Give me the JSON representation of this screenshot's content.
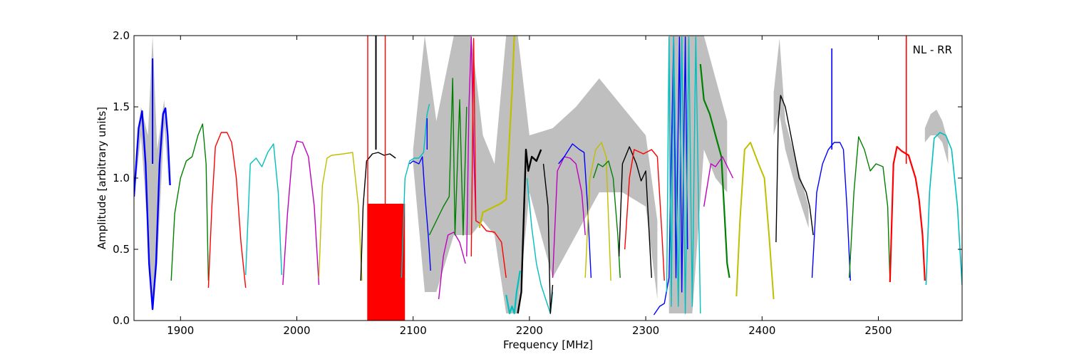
{
  "chart_data": {
    "type": "line",
    "title": "",
    "xlabel": "Frequency [MHz]",
    "ylabel": "Amplitude [arbitrary units]",
    "annotation": "NL - RR",
    "xlim": [
      1860,
      2572
    ],
    "ylim": [
      0.0,
      2.0
    ],
    "xticks": [
      1900,
      2000,
      2100,
      2200,
      2300,
      2400,
      2500
    ],
    "xtick_labels": [
      "1900",
      "2000",
      "2100",
      "2200",
      "2300",
      "2400",
      "2500"
    ],
    "yticks": [
      0.0,
      0.5,
      1.0,
      1.5,
      2.0
    ],
    "ytick_labels": [
      "0.0",
      "0.5",
      "1.0",
      "1.5",
      "2.0"
    ],
    "grid": false,
    "legend": "none",
    "envelope_color": "#bfbfbf",
    "envelope": [
      {
        "x": [
          1860,
          1866,
          1872,
          1876,
          1880,
          1886,
          1890
        ],
        "lo": [
          0.85,
          1.3,
          0.6,
          0.06,
          0.4,
          1.38,
          0.95
        ],
        "hi": [
          0.95,
          1.5,
          1.3,
          2.0,
          1.2,
          1.55,
          1.0
        ]
      },
      {
        "x": [
          2100,
          2110,
          2120,
          2135,
          2150,
          2160,
          2170,
          2180,
          2190,
          2200,
          2220,
          2240,
          2260,
          2280,
          2300,
          2310
        ],
        "lo": [
          1.1,
          0.2,
          0.2,
          0.6,
          0.6,
          0.7,
          0.6,
          0.05,
          0.05,
          0.9,
          0.3,
          0.6,
          0.9,
          0.9,
          0.8,
          0.15
        ],
        "hi": [
          1.2,
          2.0,
          1.4,
          2.0,
          2.0,
          1.3,
          1.1,
          2.0,
          2.0,
          1.3,
          1.35,
          1.5,
          1.7,
          1.5,
          1.3,
          0.7
        ]
      },
      {
        "x": [
          2320,
          2330,
          2340,
          2350,
          2360,
          2370
        ],
        "lo": [
          0.05,
          0.05,
          0.05,
          1.2,
          1.0,
          0.9
        ],
        "hi": [
          2.0,
          2.0,
          2.0,
          2.0,
          1.7,
          1.4
        ]
      },
      {
        "x": [
          2410,
          2415,
          2420,
          2430,
          2440
        ],
        "lo": [
          1.3,
          1.45,
          1.2,
          0.9,
          0.65
        ],
        "hi": [
          1.6,
          1.98,
          1.4,
          1.1,
          0.8
        ]
      },
      {
        "x": [
          2540,
          2545,
          2550,
          2555,
          2560
        ],
        "lo": [
          1.25,
          1.3,
          1.3,
          1.25,
          1.1
        ],
        "hi": [
          1.35,
          1.45,
          1.48,
          1.4,
          1.25
        ]
      }
    ],
    "series": [
      {
        "color": "#0000ff",
        "width": 2.4,
        "x": [
          1860,
          1864,
          1867,
          1870,
          1873,
          1876,
          1879,
          1882,
          1885,
          1887,
          1889,
          1891
        ],
        "y": [
          0.87,
          1.35,
          1.47,
          1.1,
          0.4,
          0.08,
          0.4,
          1.1,
          1.45,
          1.49,
          1.3,
          0.95
        ]
      },
      {
        "color": "#0000ff",
        "width": 2,
        "x": [
          1876,
          1876
        ],
        "y": [
          1.1,
          1.84
        ]
      },
      {
        "color": "#008000",
        "width": 1.4,
        "x": [
          1892,
          1895,
          1900,
          1905,
          1910,
          1915,
          1919,
          1922,
          1924
        ],
        "y": [
          0.28,
          0.75,
          1.0,
          1.12,
          1.15,
          1.3,
          1.38,
          1.1,
          0.28
        ]
      },
      {
        "color": "#ff0000",
        "width": 1.4,
        "x": [
          1924,
          1927,
          1930,
          1935,
          1940,
          1944,
          1948,
          1952,
          1956
        ],
        "y": [
          0.23,
          0.8,
          1.22,
          1.32,
          1.32,
          1.25,
          1.0,
          0.55,
          0.23
        ]
      },
      {
        "color": "#00bfbf",
        "width": 1.4,
        "x": [
          1956,
          1960,
          1965,
          1970,
          1975,
          1980,
          1984,
          1987
        ],
        "y": [
          0.32,
          1.1,
          1.14,
          1.08,
          1.18,
          1.24,
          0.9,
          0.32
        ]
      },
      {
        "color": "#bf00bf",
        "width": 1.4,
        "x": [
          1988,
          1992,
          1996,
          2000,
          2005,
          2010,
          2015,
          2019
        ],
        "y": [
          0.25,
          0.75,
          1.15,
          1.26,
          1.25,
          1.15,
          0.8,
          0.25
        ]
      },
      {
        "color": "#bfbf00",
        "width": 1.4,
        "x": [
          2019,
          2022,
          2026,
          2030,
          2040,
          2048,
          2053,
          2056
        ],
        "y": [
          0.3,
          0.95,
          1.14,
          1.16,
          1.17,
          1.18,
          0.8,
          0.28
        ]
      },
      {
        "color": "#000000",
        "width": 1.4,
        "x": [
          2055,
          2057,
          2060,
          2065,
          2070,
          2075,
          2080,
          2085
        ],
        "y": [
          0.28,
          0.8,
          1.12,
          1.17,
          1.18,
          1.16,
          1.17,
          1.14
        ]
      },
      {
        "color": "#ff0000",
        "width": 1.4,
        "x": [
          2061,
          2061
        ],
        "y": [
          0.0,
          2.0
        ]
      },
      {
        "color": "#ff0000",
        "width": 1.4,
        "x": [
          2076,
          2076
        ],
        "y": [
          0.0,
          2.0
        ]
      },
      {
        "color": "#000000",
        "width": 2,
        "x": [
          2068,
          2068
        ],
        "y": [
          1.2,
          2.0
        ]
      },
      {
        "color": "#00bfbf",
        "width": 1.4,
        "x": [
          2090,
          2093,
          2097,
          2101,
          2105,
          2109,
          2112,
          2114
        ],
        "y": [
          0.3,
          1.0,
          1.12,
          1.14,
          1.14,
          1.18,
          1.45,
          1.52
        ]
      },
      {
        "color": "#0000ff",
        "width": 1.4,
        "x": [
          2097,
          2100,
          2105,
          2108,
          2110,
          2113,
          2115
        ],
        "y": [
          1.1,
          1.12,
          1.1,
          1.15,
          0.9,
          0.6,
          0.35
        ]
      },
      {
        "color": "#0000ff",
        "width": 1.4,
        "x": [
          2112,
          2112
        ],
        "y": [
          1.2,
          1.42
        ]
      },
      {
        "color": "#bf00bf",
        "width": 1.4,
        "x": [
          2122,
          2126,
          2130,
          2135,
          2140,
          2145
        ],
        "y": [
          0.15,
          0.45,
          0.6,
          0.62,
          0.55,
          0.4
        ]
      },
      {
        "color": "#008000",
        "width": 1.4,
        "x": [
          2114,
          2120,
          2126,
          2131,
          2134,
          2136,
          2140,
          2143,
          2146
        ],
        "y": [
          0.6,
          0.7,
          0.8,
          0.87,
          1.7,
          0.6,
          1.55,
          0.6,
          1.5
        ]
      },
      {
        "color": "#bf00bf",
        "width": 1.4,
        "x": [
          2146,
          2148,
          2150,
          2152,
          2154
        ],
        "y": [
          0.45,
          1.5,
          1.99,
          1.2,
          0.7
        ]
      },
      {
        "color": "#ff0000",
        "width": 1.4,
        "x": [
          2150,
          2152,
          2154,
          2158,
          2163,
          2170,
          2176,
          2180
        ],
        "y": [
          0.45,
          1.98,
          0.7,
          0.68,
          0.63,
          0.62,
          0.55,
          0.3
        ]
      },
      {
        "color": "#bfbf00",
        "width": 2.2,
        "x": [
          2157,
          2160,
          2165,
          2170,
          2175,
          2180,
          2185,
          2187
        ],
        "y": [
          0.65,
          0.76,
          0.78,
          0.8,
          0.82,
          0.85,
          1.6,
          2.0
        ]
      },
      {
        "color": "#00bfbf",
        "width": 2.2,
        "x": [
          2180,
          2183,
          2185,
          2187,
          2189,
          2192
        ],
        "y": [
          0.18,
          0.05,
          0.1,
          0.05,
          0.2,
          0.35
        ]
      },
      {
        "color": "#000000",
        "width": 2.4,
        "x": [
          2190,
          2193,
          2197,
          2199,
          2202,
          2206,
          2210
        ],
        "y": [
          0.05,
          0.2,
          1.2,
          1.05,
          1.15,
          1.12,
          1.2
        ]
      },
      {
        "color": "#00bfbf",
        "width": 1.4,
        "x": [
          2198,
          2202,
          2206,
          2210,
          2214,
          2218,
          2220
        ],
        "y": [
          1.0,
          0.65,
          0.4,
          0.25,
          0.15,
          0.05,
          0.2
        ]
      },
      {
        "color": "#000000",
        "width": 1.4,
        "x": [
          2212,
          2216,
          2218,
          2220
        ],
        "y": [
          1.1,
          0.8,
          0.05,
          0.25
        ]
      },
      {
        "color": "#bf00bf",
        "width": 1.4,
        "x": [
          2220,
          2224,
          2230,
          2235,
          2240,
          2245,
          2248
        ],
        "y": [
          0.3,
          1.05,
          1.15,
          1.14,
          1.1,
          0.9,
          0.6
        ]
      },
      {
        "color": "#0000ff",
        "width": 1.4,
        "x": [
          2225,
          2230,
          2237,
          2243,
          2247,
          2250,
          2253
        ],
        "y": [
          1.1,
          1.15,
          1.24,
          1.2,
          1.18,
          0.8,
          0.3
        ]
      },
      {
        "color": "#bfbf00",
        "width": 1.4,
        "x": [
          2248,
          2252,
          2257,
          2262,
          2266,
          2270
        ],
        "y": [
          0.3,
          1.0,
          1.2,
          1.25,
          1.15,
          0.28
        ]
      },
      {
        "color": "#008000",
        "width": 1.4,
        "x": [
          2255,
          2259,
          2263,
          2268,
          2272,
          2276,
          2278
        ],
        "y": [
          1.0,
          1.1,
          1.08,
          1.12,
          1.0,
          0.6,
          0.3
        ]
      },
      {
        "color": "#000000",
        "width": 1.4,
        "x": [
          2277,
          2280,
          2286,
          2292,
          2296,
          2300,
          2305
        ],
        "y": [
          0.45,
          1.1,
          1.22,
          1.1,
          0.98,
          1.05,
          0.3
        ]
      },
      {
        "color": "#ff0000",
        "width": 1.4,
        "x": [
          2282,
          2286,
          2290,
          2298,
          2305,
          2310,
          2314,
          2316
        ],
        "y": [
          0.5,
          1.0,
          1.2,
          1.17,
          1.2,
          1.15,
          0.6,
          0.28
        ]
      },
      {
        "color": "#0000ff",
        "width": 1.4,
        "x": [
          2307,
          2312,
          2316,
          2320,
          2324,
          2326,
          2329,
          2331,
          2334,
          2336
        ],
        "y": [
          0.04,
          0.1,
          0.12,
          0.3,
          1.99,
          0.3,
          1.99,
          0.2,
          1.99,
          0.5
        ]
      },
      {
        "color": "#00bfbf",
        "width": 1.4,
        "x": [
          2318,
          2320,
          2322,
          2324,
          2328,
          2331,
          2334,
          2337,
          2340,
          2343,
          2347
        ],
        "y": [
          0.2,
          1.99,
          0.1,
          1.99,
          0.1,
          1.99,
          0.05,
          1.99,
          0.1,
          1.99,
          0.05
        ]
      },
      {
        "color": "#008000",
        "width": 2.2,
        "x": [
          2347,
          2350,
          2355,
          2360,
          2365,
          2368,
          2370,
          2372
        ],
        "y": [
          1.8,
          1.55,
          1.45,
          1.3,
          1.15,
          0.7,
          0.4,
          0.3
        ]
      },
      {
        "color": "#bf00bf",
        "width": 1.4,
        "x": [
          2350,
          2356,
          2360,
          2366,
          2372,
          2375
        ],
        "y": [
          0.8,
          1.1,
          1.08,
          1.15,
          1.05,
          1.0
        ]
      },
      {
        "color": "#bfbf00",
        "width": 2,
        "x": [
          2378,
          2381,
          2385,
          2390,
          2397,
          2402,
          2406,
          2410
        ],
        "y": [
          0.17,
          0.7,
          1.2,
          1.25,
          1.1,
          1.0,
          0.6,
          0.15
        ]
      },
      {
        "color": "#000000",
        "width": 1.4,
        "x": [
          2412,
          2414,
          2416,
          2420,
          2426,
          2432,
          2438,
          2441,
          2444
        ],
        "y": [
          0.55,
          1.4,
          1.58,
          1.5,
          1.25,
          1.0,
          0.9,
          0.8,
          0.6
        ]
      },
      {
        "color": "#0000ff",
        "width": 1.4,
        "x": [
          2443,
          2447,
          2452,
          2457,
          2462,
          2467,
          2470,
          2473,
          2476
        ],
        "y": [
          0.3,
          0.9,
          1.1,
          1.2,
          1.25,
          1.25,
          1.2,
          0.8,
          0.28
        ]
      },
      {
        "color": "#0000ff",
        "width": 1.6,
        "x": [
          2460,
          2460
        ],
        "y": [
          1.2,
          1.91
        ]
      },
      {
        "color": "#008000",
        "width": 1.4,
        "x": [
          2475,
          2479,
          2483,
          2488,
          2493,
          2498,
          2504,
          2508,
          2510
        ],
        "y": [
          0.3,
          0.9,
          1.29,
          1.2,
          1.05,
          1.1,
          1.08,
          0.8,
          0.28
        ]
      },
      {
        "color": "#ff0000",
        "width": 2.2,
        "x": [
          2510,
          2513,
          2516,
          2520,
          2526,
          2532,
          2535,
          2538,
          2540
        ],
        "y": [
          0.27,
          1.1,
          1.22,
          1.19,
          1.16,
          1.0,
          0.85,
          0.6,
          0.28
        ]
      },
      {
        "color": "#ff0000",
        "width": 1.6,
        "x": [
          2524,
          2524
        ],
        "y": [
          1.1,
          2.0
        ]
      },
      {
        "color": "#00bfbf",
        "width": 1.6,
        "x": [
          2541,
          2544,
          2548,
          2553,
          2558,
          2563,
          2568,
          2572
        ],
        "y": [
          0.25,
          0.9,
          1.28,
          1.32,
          1.3,
          1.2,
          0.8,
          0.25
        ]
      }
    ],
    "bands": [
      {
        "color": "#ff0000",
        "x0": 2061,
        "x1": 2093,
        "lo": 0.0,
        "hi": 0.82
      }
    ]
  }
}
